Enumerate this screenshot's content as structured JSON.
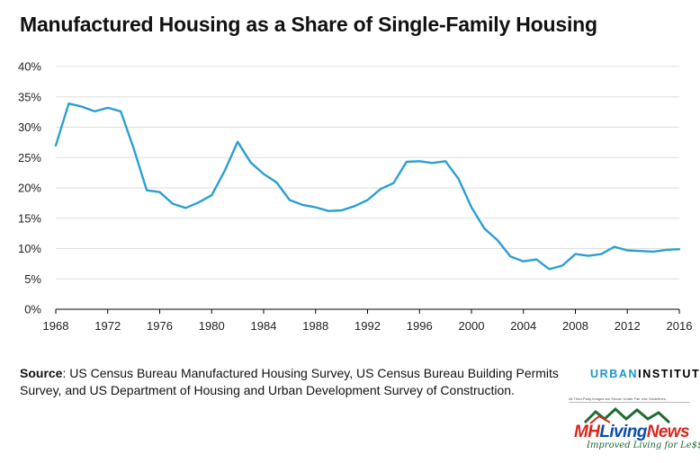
{
  "chart_data": {
    "type": "line",
    "title": "Manufactured Housing as a Share of Single-Family Housing",
    "xlabel": "",
    "ylabel": "",
    "xlim": [
      1968,
      2016
    ],
    "ylim": [
      0,
      40
    ],
    "x_ticks": [
      "1968",
      "1972",
      "1976",
      "1980",
      "1984",
      "1988",
      "1992",
      "1996",
      "2000",
      "2004",
      "2008",
      "2012",
      "2016"
    ],
    "y_ticks": [
      "0%",
      "5%",
      "10%",
      "15%",
      "20%",
      "25%",
      "30%",
      "35%",
      "40%"
    ],
    "grid": "horizontal",
    "legend": "none",
    "line_color": "#2b9fd0",
    "series": [
      {
        "x": [
          1968,
          1969,
          1970,
          1971,
          1972,
          1973,
          1974,
          1975,
          1976,
          1977,
          1978,
          1979,
          1980,
          1981,
          1982,
          1983,
          1984,
          1985,
          1986,
          1987,
          1988,
          1989,
          1990,
          1991,
          1992,
          1993,
          1994,
          1995,
          1996,
          1997,
          1998,
          1999,
          2000,
          2001,
          2002,
          2003,
          2004,
          2005,
          2006,
          2007,
          2008,
          2009,
          2010,
          2011,
          2012,
          2013,
          2014,
          2015,
          2016
        ],
        "values": [
          27.0,
          33.9,
          33.4,
          32.6,
          33.2,
          32.6,
          26.5,
          19.6,
          19.3,
          17.4,
          16.7,
          17.6,
          18.8,
          22.8,
          27.6,
          24.2,
          22.3,
          20.9,
          18.0,
          17.2,
          16.8,
          16.2,
          16.3,
          17.0,
          18.0,
          19.8,
          20.8,
          24.3,
          24.4,
          24.1,
          24.4,
          21.5,
          16.8,
          13.3,
          11.4,
          8.7,
          7.9,
          8.2,
          6.6,
          7.2,
          9.1,
          8.8,
          9.1,
          10.3,
          9.7,
          9.6,
          9.5,
          9.8,
          9.9
        ]
      }
    ]
  },
  "footer": {
    "source_label": "Source",
    "source_text": ": US Census Bureau Manufactured Housing Survey, US Census Bureau Building Permits Survey, and US Department of Housing and Urban Development Survey of Construction."
  },
  "branding": {
    "urban_part1": "URBAN",
    "urban_part2": "INSTITUTE",
    "mh_note": "All Third-Party images are Shown Under Fair Use Guidelines.",
    "mh_name_part1": "MH",
    "mh_name_part2": "Living",
    "mh_name_part3": "News",
    "mh_tagline": "Improved Living for Le$$"
  }
}
